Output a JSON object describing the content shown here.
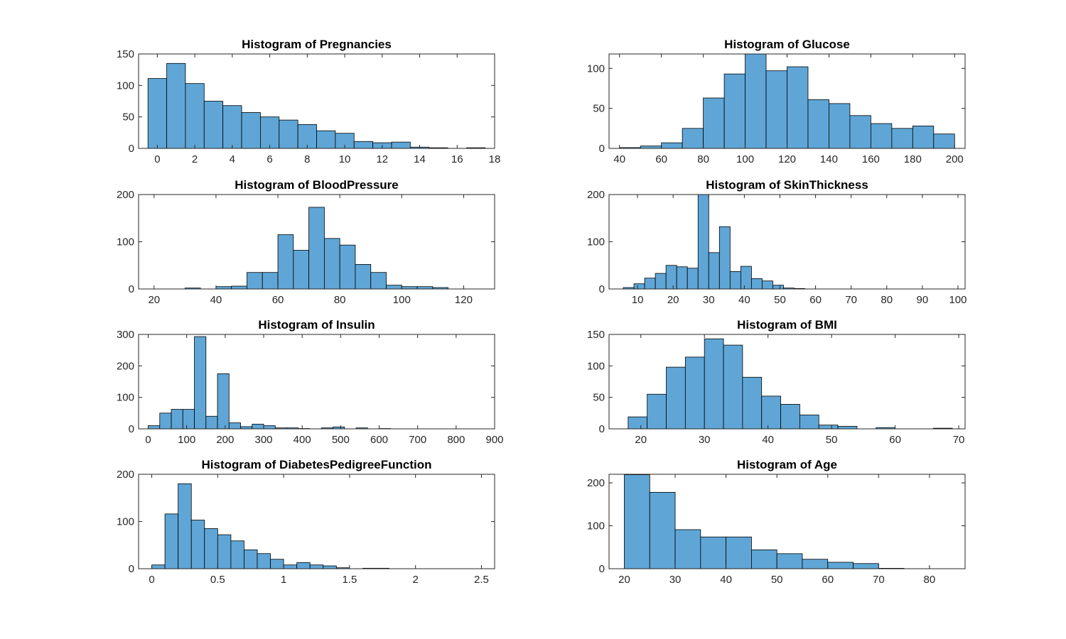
{
  "bar_color": "#5fa6d6",
  "chart_data": [
    {
      "type": "bar",
      "title": "Histogram of Pregnancies",
      "xlabel": "",
      "ylabel": "",
      "xlim": [
        -1,
        18
      ],
      "ylim": [
        0,
        150
      ],
      "xticks": [
        0,
        2,
        4,
        6,
        8,
        10,
        12,
        14,
        16,
        18
      ],
      "yticks": [
        0,
        50,
        100,
        150
      ],
      "bins": [
        {
          "x0": -0.5,
          "x1": 0.5,
          "count": 111
        },
        {
          "x0": 0.5,
          "x1": 1.5,
          "count": 135
        },
        {
          "x0": 1.5,
          "x1": 2.5,
          "count": 103
        },
        {
          "x0": 2.5,
          "x1": 3.5,
          "count": 75
        },
        {
          "x0": 3.5,
          "x1": 4.5,
          "count": 68
        },
        {
          "x0": 4.5,
          "x1": 5.5,
          "count": 57
        },
        {
          "x0": 5.5,
          "x1": 6.5,
          "count": 50
        },
        {
          "x0": 6.5,
          "x1": 7.5,
          "count": 45
        },
        {
          "x0": 7.5,
          "x1": 8.5,
          "count": 38
        },
        {
          "x0": 8.5,
          "x1": 9.5,
          "count": 28
        },
        {
          "x0": 9.5,
          "x1": 10.5,
          "count": 24
        },
        {
          "x0": 10.5,
          "x1": 11.5,
          "count": 11
        },
        {
          "x0": 11.5,
          "x1": 12.5,
          "count": 9
        },
        {
          "x0": 12.5,
          "x1": 13.5,
          "count": 10
        },
        {
          "x0": 13.5,
          "x1": 14.5,
          "count": 2
        },
        {
          "x0": 14.5,
          "x1": 15.5,
          "count": 1
        },
        {
          "x0": 15.5,
          "x1": 16.5,
          "count": 0
        },
        {
          "x0": 16.5,
          "x1": 17.5,
          "count": 1
        }
      ]
    },
    {
      "type": "bar",
      "title": "Histogram of Glucose",
      "xlabel": "",
      "ylabel": "",
      "xlim": [
        35,
        205
      ],
      "ylim": [
        0,
        118
      ],
      "xticks": [
        40,
        60,
        80,
        100,
        120,
        140,
        160,
        180,
        200
      ],
      "yticks": [
        0,
        50,
        100
      ],
      "bins": [
        {
          "x0": 40,
          "x1": 50,
          "count": 1
        },
        {
          "x0": 50,
          "x1": 60,
          "count": 3
        },
        {
          "x0": 60,
          "x1": 70,
          "count": 7
        },
        {
          "x0": 70,
          "x1": 80,
          "count": 25
        },
        {
          "x0": 80,
          "x1": 90,
          "count": 63
        },
        {
          "x0": 90,
          "x1": 100,
          "count": 93
        },
        {
          "x0": 100,
          "x1": 110,
          "count": 118
        },
        {
          "x0": 110,
          "x1": 120,
          "count": 97
        },
        {
          "x0": 120,
          "x1": 130,
          "count": 102
        },
        {
          "x0": 130,
          "x1": 140,
          "count": 61
        },
        {
          "x0": 140,
          "x1": 150,
          "count": 56
        },
        {
          "x0": 150,
          "x1": 160,
          "count": 41
        },
        {
          "x0": 160,
          "x1": 170,
          "count": 31
        },
        {
          "x0": 170,
          "x1": 180,
          "count": 25
        },
        {
          "x0": 180,
          "x1": 190,
          "count": 28
        },
        {
          "x0": 190,
          "x1": 200,
          "count": 18
        }
      ]
    },
    {
      "type": "bar",
      "title": "Histogram of BloodPressure",
      "xlabel": "",
      "ylabel": "",
      "xlim": [
        15,
        130
      ],
      "ylim": [
        0,
        200
      ],
      "xticks": [
        20,
        40,
        60,
        80,
        100,
        120
      ],
      "yticks": [
        0,
        100,
        200
      ],
      "bins": [
        {
          "x0": 20,
          "x1": 25,
          "count": 0
        },
        {
          "x0": 25,
          "x1": 30,
          "count": 0
        },
        {
          "x0": 30,
          "x1": 35,
          "count": 2
        },
        {
          "x0": 35,
          "x1": 40,
          "count": 0
        },
        {
          "x0": 40,
          "x1": 45,
          "count": 5
        },
        {
          "x0": 45,
          "x1": 50,
          "count": 6
        },
        {
          "x0": 50,
          "x1": 55,
          "count": 35
        },
        {
          "x0": 55,
          "x1": 60,
          "count": 35
        },
        {
          "x0": 60,
          "x1": 65,
          "count": 115
        },
        {
          "x0": 65,
          "x1": 70,
          "count": 82
        },
        {
          "x0": 70,
          "x1": 75,
          "count": 173
        },
        {
          "x0": 75,
          "x1": 80,
          "count": 107
        },
        {
          "x0": 80,
          "x1": 85,
          "count": 93
        },
        {
          "x0": 85,
          "x1": 90,
          "count": 52
        },
        {
          "x0": 90,
          "x1": 95,
          "count": 35
        },
        {
          "x0": 95,
          "x1": 100,
          "count": 8
        },
        {
          "x0": 100,
          "x1": 105,
          "count": 5
        },
        {
          "x0": 105,
          "x1": 110,
          "count": 5
        },
        {
          "x0": 110,
          "x1": 115,
          "count": 3
        }
      ]
    },
    {
      "type": "bar",
      "title": "Histogram of SkinThickness",
      "xlabel": "",
      "ylabel": "",
      "xlim": [
        2,
        102
      ],
      "ylim": [
        0,
        200
      ],
      "xticks": [
        10,
        20,
        30,
        40,
        50,
        60,
        70,
        80,
        90,
        100
      ],
      "yticks": [
        0,
        100,
        200
      ],
      "bins": [
        {
          "x0": 6,
          "x1": 9,
          "count": 3
        },
        {
          "x0": 9,
          "x1": 12,
          "count": 11
        },
        {
          "x0": 12,
          "x1": 15,
          "count": 23
        },
        {
          "x0": 15,
          "x1": 18,
          "count": 33
        },
        {
          "x0": 18,
          "x1": 21,
          "count": 50
        },
        {
          "x0": 21,
          "x1": 24,
          "count": 47
        },
        {
          "x0": 24,
          "x1": 27,
          "count": 44
        },
        {
          "x0": 27,
          "x1": 30,
          "count": 200
        },
        {
          "x0": 30,
          "x1": 33,
          "count": 77
        },
        {
          "x0": 33,
          "x1": 36,
          "count": 132
        },
        {
          "x0": 36,
          "x1": 39,
          "count": 37
        },
        {
          "x0": 39,
          "x1": 42,
          "count": 48
        },
        {
          "x0": 42,
          "x1": 45,
          "count": 22
        },
        {
          "x0": 45,
          "x1": 48,
          "count": 17
        },
        {
          "x0": 48,
          "x1": 51,
          "count": 8
        },
        {
          "x0": 51,
          "x1": 54,
          "count": 2
        },
        {
          "x0": 54,
          "x1": 57,
          "count": 1
        }
      ]
    },
    {
      "type": "bar",
      "title": "Histogram of Insulin",
      "xlabel": "",
      "ylabel": "",
      "xlim": [
        -25,
        900
      ],
      "ylim": [
        0,
        300
      ],
      "xticks": [
        0,
        100,
        200,
        300,
        400,
        500,
        600,
        700,
        800,
        900
      ],
      "yticks": [
        0,
        100,
        200,
        300
      ],
      "bins": [
        {
          "x0": 0,
          "x1": 30,
          "count": 10
        },
        {
          "x0": 30,
          "x1": 60,
          "count": 50
        },
        {
          "x0": 60,
          "x1": 90,
          "count": 62
        },
        {
          "x0": 90,
          "x1": 120,
          "count": 62
        },
        {
          "x0": 120,
          "x1": 150,
          "count": 293
        },
        {
          "x0": 150,
          "x1": 180,
          "count": 40
        },
        {
          "x0": 180,
          "x1": 210,
          "count": 175
        },
        {
          "x0": 210,
          "x1": 240,
          "count": 19
        },
        {
          "x0": 240,
          "x1": 270,
          "count": 7
        },
        {
          "x0": 270,
          "x1": 300,
          "count": 15
        },
        {
          "x0": 300,
          "x1": 330,
          "count": 10
        },
        {
          "x0": 330,
          "x1": 360,
          "count": 3
        },
        {
          "x0": 360,
          "x1": 390,
          "count": 3
        },
        {
          "x0": 390,
          "x1": 420,
          "count": 1
        },
        {
          "x0": 420,
          "x1": 450,
          "count": 0
        },
        {
          "x0": 450,
          "x1": 480,
          "count": 3
        },
        {
          "x0": 480,
          "x1": 510,
          "count": 6
        },
        {
          "x0": 510,
          "x1": 540,
          "count": 0
        },
        {
          "x0": 540,
          "x1": 570,
          "count": 3
        },
        {
          "x0": 570,
          "x1": 600,
          "count": 0
        },
        {
          "x0": 600,
          "x1": 630,
          "count": 1
        }
      ]
    },
    {
      "type": "bar",
      "title": "Histogram of BMI",
      "xlabel": "",
      "ylabel": "",
      "xlim": [
        15,
        71
      ],
      "ylim": [
        0,
        150
      ],
      "xticks": [
        20,
        30,
        40,
        50,
        60,
        70
      ],
      "yticks": [
        0,
        50,
        100,
        150
      ],
      "bins": [
        {
          "x0": 18,
          "x1": 21,
          "count": 19
        },
        {
          "x0": 21,
          "x1": 24,
          "count": 55
        },
        {
          "x0": 24,
          "x1": 27,
          "count": 98
        },
        {
          "x0": 27,
          "x1": 30,
          "count": 114
        },
        {
          "x0": 30,
          "x1": 33,
          "count": 143
        },
        {
          "x0": 33,
          "x1": 36,
          "count": 133
        },
        {
          "x0": 36,
          "x1": 39,
          "count": 82
        },
        {
          "x0": 39,
          "x1": 42,
          "count": 52
        },
        {
          "x0": 42,
          "x1": 45,
          "count": 39
        },
        {
          "x0": 45,
          "x1": 48,
          "count": 22
        },
        {
          "x0": 48,
          "x1": 51,
          "count": 6
        },
        {
          "x0": 51,
          "x1": 54,
          "count": 4
        },
        {
          "x0": 54,
          "x1": 57,
          "count": 0
        },
        {
          "x0": 57,
          "x1": 60,
          "count": 2
        },
        {
          "x0": 60,
          "x1": 63,
          "count": 0
        },
        {
          "x0": 63,
          "x1": 66,
          "count": 0
        },
        {
          "x0": 66,
          "x1": 69,
          "count": 1
        }
      ]
    },
    {
      "type": "bar",
      "title": "Histogram of DiabetesPedigreeFunction",
      "xlabel": "",
      "ylabel": "",
      "xlim": [
        -0.1,
        2.6
      ],
      "ylim": [
        0,
        200
      ],
      "xticks": [
        0,
        0.5,
        1,
        1.5,
        2,
        2.5
      ],
      "xtick_labels": [
        "0",
        "0.5",
        "1",
        "1.5",
        "2",
        "2.5"
      ],
      "yticks": [
        0,
        100,
        200
      ],
      "bins": [
        {
          "x0": 0.0,
          "x1": 0.1,
          "count": 8
        },
        {
          "x0": 0.1,
          "x1": 0.2,
          "count": 116
        },
        {
          "x0": 0.2,
          "x1": 0.3,
          "count": 180
        },
        {
          "x0": 0.3,
          "x1": 0.4,
          "count": 103
        },
        {
          "x0": 0.4,
          "x1": 0.5,
          "count": 85
        },
        {
          "x0": 0.5,
          "x1": 0.6,
          "count": 72
        },
        {
          "x0": 0.6,
          "x1": 0.7,
          "count": 59
        },
        {
          "x0": 0.7,
          "x1": 0.8,
          "count": 40
        },
        {
          "x0": 0.8,
          "x1": 0.9,
          "count": 32
        },
        {
          "x0": 0.9,
          "x1": 1.0,
          "count": 20
        },
        {
          "x0": 1.0,
          "x1": 1.1,
          "count": 8
        },
        {
          "x0": 1.1,
          "x1": 1.2,
          "count": 13
        },
        {
          "x0": 1.2,
          "x1": 1.3,
          "count": 8
        },
        {
          "x0": 1.3,
          "x1": 1.4,
          "count": 6
        },
        {
          "x0": 1.4,
          "x1": 1.5,
          "count": 2
        },
        {
          "x0": 1.5,
          "x1": 1.6,
          "count": 0
        },
        {
          "x0": 1.6,
          "x1": 1.7,
          "count": 1
        },
        {
          "x0": 1.7,
          "x1": 1.8,
          "count": 1
        },
        {
          "x0": 1.8,
          "x1": 1.9,
          "count": 0
        },
        {
          "x0": 1.9,
          "x1": 2.0,
          "count": 0
        },
        {
          "x0": 2.0,
          "x1": 2.1,
          "count": 0
        },
        {
          "x0": 2.1,
          "x1": 2.2,
          "count": 0
        },
        {
          "x0": 2.2,
          "x1": 2.3,
          "count": 0
        },
        {
          "x0": 2.3,
          "x1": 2.4,
          "count": 0
        },
        {
          "x0": 2.4,
          "x1": 2.5,
          "count": 0
        }
      ]
    },
    {
      "type": "bar",
      "title": "Histogram of Age",
      "xlabel": "",
      "ylabel": "",
      "xlim": [
        17,
        87
      ],
      "ylim": [
        0,
        220
      ],
      "xticks": [
        20,
        30,
        40,
        50,
        60,
        70,
        80
      ],
      "yticks": [
        0,
        100,
        200
      ],
      "bins": [
        {
          "x0": 20,
          "x1": 25,
          "count": 219
        },
        {
          "x0": 25,
          "x1": 30,
          "count": 178
        },
        {
          "x0": 30,
          "x1": 35,
          "count": 91
        },
        {
          "x0": 35,
          "x1": 40,
          "count": 74
        },
        {
          "x0": 40,
          "x1": 45,
          "count": 74
        },
        {
          "x0": 45,
          "x1": 50,
          "count": 44
        },
        {
          "x0": 50,
          "x1": 55,
          "count": 35
        },
        {
          "x0": 55,
          "x1": 60,
          "count": 22
        },
        {
          "x0": 60,
          "x1": 65,
          "count": 15
        },
        {
          "x0": 65,
          "x1": 70,
          "count": 12
        },
        {
          "x0": 70,
          "x1": 75,
          "count": 1
        }
      ]
    }
  ]
}
